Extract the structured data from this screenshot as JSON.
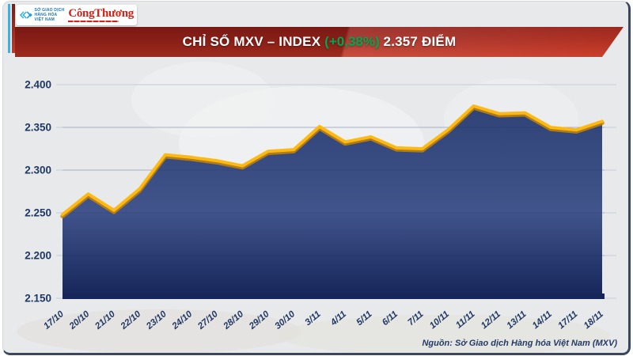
{
  "header": {
    "mxv_logo": {
      "lines": [
        "SỞ GIAO DỊCH",
        "HÀNG HÓA",
        "VIỆT NAM"
      ]
    },
    "congthuong_logo": {
      "text": "CôngThương"
    }
  },
  "banner": {
    "title_prefix": "CHỈ SỐ MXV – INDEX ",
    "title_change": "(+0,38%)",
    "title_suffix": " 2.357 ĐIỂM",
    "change_color": "#00a651"
  },
  "chart_data": {
    "type": "area",
    "title": "CHỈ SỐ MXV – INDEX (+0,38%) 2.357 ĐIỂM",
    "categories": [
      "17/10",
      "20/10",
      "21/10",
      "22/10",
      "23/10",
      "24/10",
      "27/10",
      "28/10",
      "29/10",
      "30/10",
      "3/11",
      "4/11",
      "5/11",
      "6/11",
      "7/11",
      "10/11",
      "11/11",
      "12/11",
      "13/11",
      "14/11",
      "17/11",
      "18/11"
    ],
    "values": [
      2248,
      2272,
      2253,
      2278,
      2318,
      2315,
      2311,
      2305,
      2322,
      2324,
      2351,
      2333,
      2339,
      2326,
      2325,
      2347,
      2375,
      2366,
      2367,
      2350,
      2347,
      2357
    ],
    "y_ticks": [
      "2.400",
      "2.350",
      "2.300",
      "2.250",
      "2.200",
      "2.150"
    ],
    "ylim": [
      2150,
      2400
    ],
    "grid": true,
    "legend": "none",
    "line_color": "#fdb913",
    "line_shadow_color": "#c98400",
    "fill_colors": [
      "#2f4377",
      "#41548b",
      "#15255a"
    ],
    "gridline_color": "#c3cbd9",
    "label_color": "#1f3864"
  },
  "footer": {
    "source": "Nguồn: Sở Giao dịch Hàng hóa Việt Nam (MXV)"
  }
}
